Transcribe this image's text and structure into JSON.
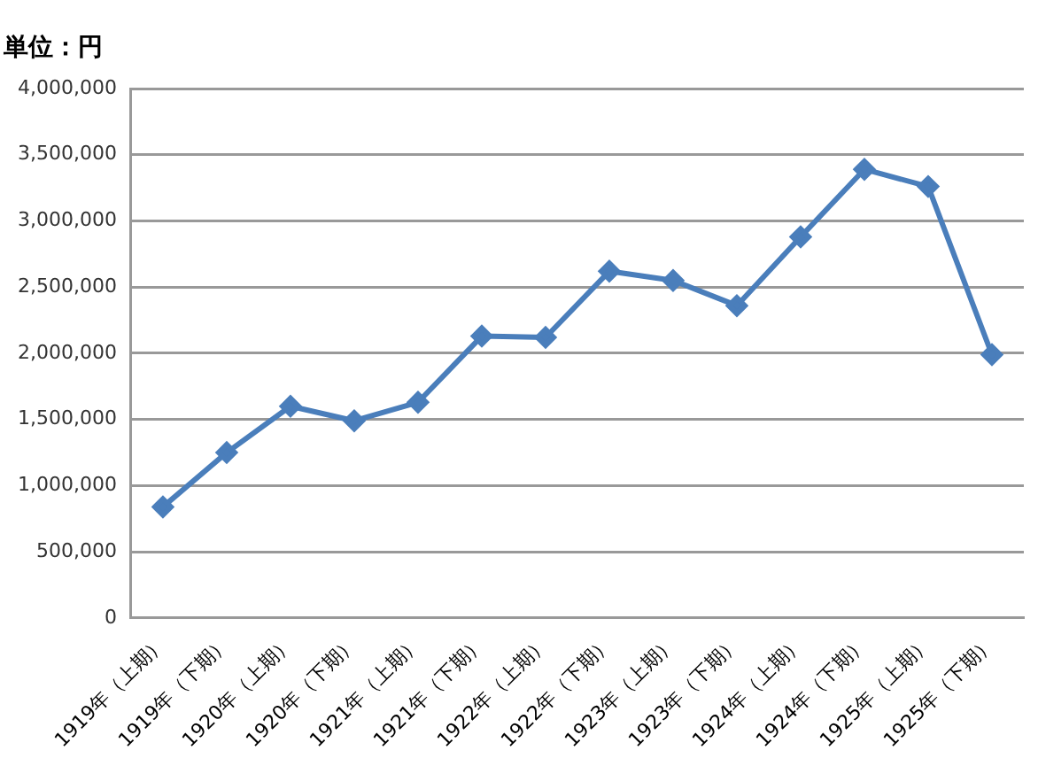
{
  "chart_data": {
    "type": "line",
    "title": "単位：円",
    "categories": [
      "1919年（上期）",
      "1919年（下期）",
      "1920年（上期）",
      "1920年（下期）",
      "1921年（上期）",
      "1921年（下期）",
      "1922年（上期）",
      "1922年（下期）",
      "1923年（上期）",
      "1923年（下期）",
      "1924年（上期）",
      "1924年（下期）",
      "1925年（上期）",
      "1925年（下期）"
    ],
    "series": [
      {
        "color": "#4a7ebb",
        "values": [
          840000,
          1250000,
          1600000,
          1490000,
          1630000,
          2130000,
          2120000,
          2620000,
          2550000,
          2360000,
          2880000,
          3390000,
          3260000,
          1990000
        ]
      }
    ],
    "ylim": [
      0,
      4000000
    ],
    "yticks": [
      0,
      {
        "value": 500000,
        "label": "500,000"
      },
      {
        "value": 1000000,
        "label": "1,000,000"
      },
      {
        "value": 1500000,
        "label": "1,500,000"
      },
      {
        "value": 2000000,
        "label": "2,000,000"
      },
      {
        "value": 2500000,
        "label": "2,500,000"
      },
      {
        "value": 3000000,
        "label": "3,000,000"
      },
      {
        "value": 3500000,
        "label": "3,500,000"
      },
      {
        "value": 4000000,
        "label": "4,000,000"
      }
    ],
    "grid": "y",
    "legend": false,
    "marker": "diamond",
    "line_style": "solid"
  }
}
